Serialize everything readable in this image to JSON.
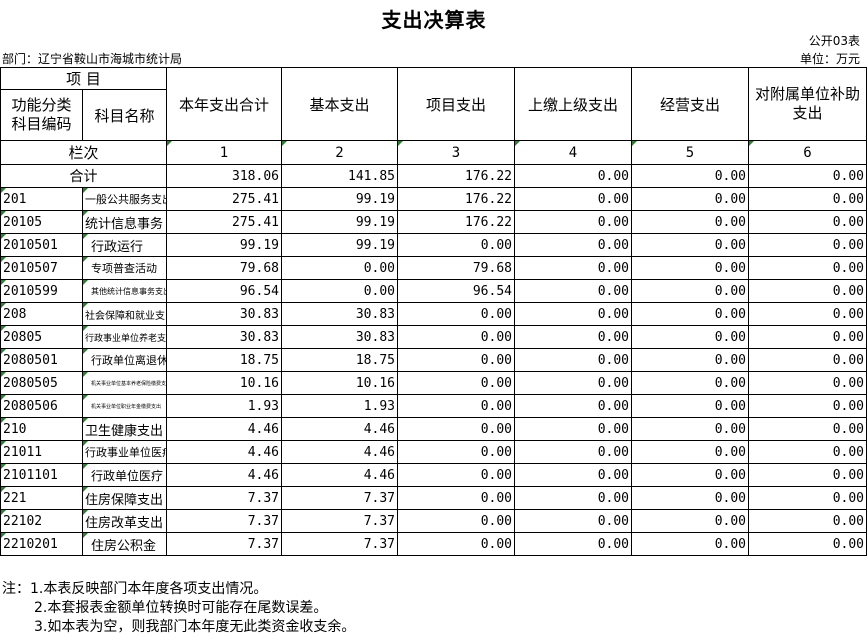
{
  "title": "支出决算表",
  "form_code": "公开03表",
  "department": "部门：辽宁省鞍山市海城市统计局",
  "unit": "单位：万元",
  "header": {
    "item": "项    目",
    "func_code": "功能分类\n科目编码",
    "subject_name": "科目名称",
    "columns": [
      "本年支出合计",
      "基本支出",
      "项目支出",
      "上缴上级支出",
      "经营支出",
      "对附属单位补助支出"
    ],
    "row_label": "栏次",
    "col_numbers": [
      "1",
      "2",
      "3",
      "4",
      "5",
      "6"
    ]
  },
  "total": {
    "label": "合计",
    "values": [
      "318.06",
      "141.85",
      "176.22",
      "0.00",
      "0.00",
      "0.00"
    ]
  },
  "rows": [
    {
      "code": "201",
      "name": "一般公共服务支出",
      "values": [
        "275.41",
        "99.19",
        "176.22",
        "0.00",
        "0.00",
        "0.00"
      ]
    },
    {
      "code": "20105",
      "name": "统计信息事务",
      "values": [
        "275.41",
        "99.19",
        "176.22",
        "0.00",
        "0.00",
        "0.00"
      ]
    },
    {
      "code": "2010501",
      "name": "行政运行",
      "values": [
        "99.19",
        "99.19",
        "0.00",
        "0.00",
        "0.00",
        "0.00"
      ]
    },
    {
      "code": "2010507",
      "name": "专项普查活动",
      "values": [
        "79.68",
        "0.00",
        "79.68",
        "0.00",
        "0.00",
        "0.00"
      ]
    },
    {
      "code": "2010599",
      "name": "其他统计信息事务支出",
      "values": [
        "96.54",
        "0.00",
        "96.54",
        "0.00",
        "0.00",
        "0.00"
      ]
    },
    {
      "code": "208",
      "name": "社会保障和就业支出",
      "values": [
        "30.83",
        "30.83",
        "0.00",
        "0.00",
        "0.00",
        "0.00"
      ]
    },
    {
      "code": "20805",
      "name": "行政事业单位养老支出",
      "values": [
        "30.83",
        "30.83",
        "0.00",
        "0.00",
        "0.00",
        "0.00"
      ]
    },
    {
      "code": "2080501",
      "name": "行政单位离退休",
      "values": [
        "18.75",
        "18.75",
        "0.00",
        "0.00",
        "0.00",
        "0.00"
      ]
    },
    {
      "code": "2080505",
      "name": "机关事业单位基本养老保险缴费支出",
      "values": [
        "10.16",
        "10.16",
        "0.00",
        "0.00",
        "0.00",
        "0.00"
      ]
    },
    {
      "code": "2080506",
      "name": "机关事业单位职业年金缴费支出",
      "values": [
        "1.93",
        "1.93",
        "0.00",
        "0.00",
        "0.00",
        "0.00"
      ]
    },
    {
      "code": "210",
      "name": "卫生健康支出",
      "values": [
        "4.46",
        "4.46",
        "0.00",
        "0.00",
        "0.00",
        "0.00"
      ]
    },
    {
      "code": "21011",
      "name": "行政事业单位医疗",
      "values": [
        "4.46",
        "4.46",
        "0.00",
        "0.00",
        "0.00",
        "0.00"
      ]
    },
    {
      "code": "2101101",
      "name": "行政单位医疗",
      "values": [
        "4.46",
        "4.46",
        "0.00",
        "0.00",
        "0.00",
        "0.00"
      ]
    },
    {
      "code": "221",
      "name": "住房保障支出",
      "values": [
        "7.37",
        "7.37",
        "0.00",
        "0.00",
        "0.00",
        "0.00"
      ]
    },
    {
      "code": "22102",
      "name": "住房改革支出",
      "values": [
        "7.37",
        "7.37",
        "0.00",
        "0.00",
        "0.00",
        "0.00"
      ]
    },
    {
      "code": "2210201",
      "name": "住房公积金",
      "values": [
        "7.37",
        "7.37",
        "0.00",
        "0.00",
        "0.00",
        "0.00"
      ]
    }
  ],
  "notes": [
    "注：1.本表反映部门本年度各项支出情况。",
    "2.本套报表金额单位转换时可能存在尾数误差。",
    "3.如本表为空，则我部门本年度无此类资金收支余。"
  ]
}
